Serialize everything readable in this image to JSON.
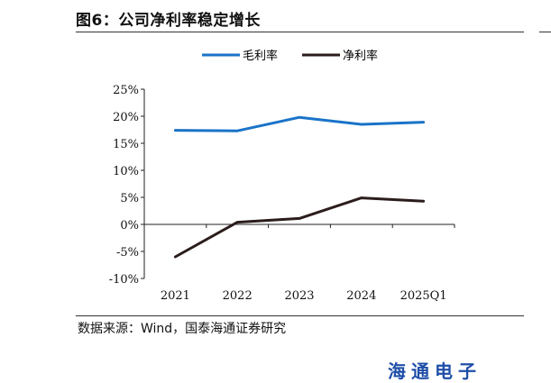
{
  "figure": {
    "title": "图6：公司净利率稳定增长",
    "source": "数据来源：Wind，国泰海通证券研究",
    "brand": "海通电子"
  },
  "colors": {
    "gross": "#1a73c8",
    "net": "#2b1d1b",
    "axis": "#222222"
  },
  "chart_data": {
    "type": "line",
    "categories": [
      "2021",
      "2022",
      "2023",
      "2024",
      "2025Q1"
    ],
    "series": [
      {
        "name": "毛利率",
        "values": [
          17.4,
          17.3,
          19.8,
          18.5,
          18.9
        ]
      },
      {
        "name": "净利率",
        "values": [
          -6.0,
          0.4,
          1.1,
          4.9,
          4.3
        ]
      }
    ],
    "yticks": [
      "25%",
      "20%",
      "15%",
      "10%",
      "5%",
      "0%",
      "-5%",
      "-10%"
    ],
    "ylim": [
      -10,
      25
    ],
    "grid": false,
    "legend_position": "top"
  }
}
